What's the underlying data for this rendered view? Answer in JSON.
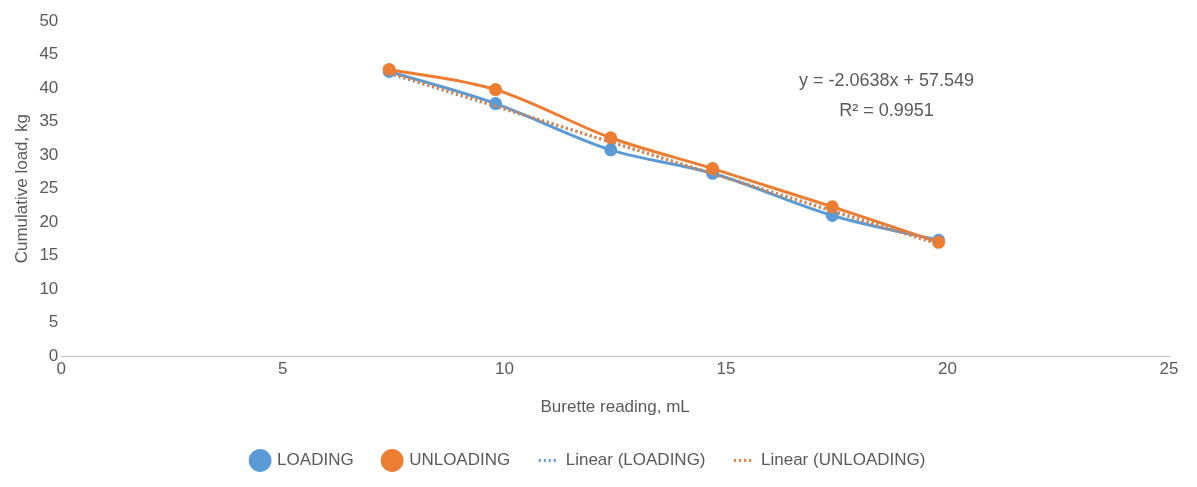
{
  "chart_data": {
    "type": "line",
    "xlabel": "Burette reading, mL",
    "ylabel": "Cumulative load, kg",
    "xlim": [
      0,
      25
    ],
    "xticks": [
      0,
      5,
      10,
      15,
      20,
      25
    ],
    "ylim": [
      0,
      50
    ],
    "yticks": [
      0,
      5,
      10,
      15,
      20,
      25,
      30,
      35,
      40,
      45,
      50
    ],
    "grid": false,
    "legend": "bottom",
    "marker": "circle",
    "annotations": [
      "y = -2.0638x + 57.549",
      "R² = 0.9951"
    ],
    "series": [
      {
        "name": "LOADING",
        "color": "#5b9bd5",
        "x": [
          7.4,
          9.8,
          12.4,
          14.7,
          17.4,
          19.8
        ],
        "values": [
          42.5,
          37.7,
          30.8,
          27.3,
          21.0,
          17.3
        ]
      },
      {
        "name": "UNLOADING",
        "color": "#ed7d31",
        "x": [
          7.4,
          9.8,
          12.4,
          14.7,
          17.4,
          19.8
        ],
        "values": [
          42.8,
          39.8,
          32.6,
          28.0,
          22.3,
          17.0
        ]
      },
      {
        "name": "Linear (LOADING)",
        "color": "#5b9bd5",
        "x": [
          7.4,
          19.8
        ],
        "values": [
          42.2,
          16.8
        ],
        "marker": "none",
        "line_style": "dotted"
      },
      {
        "name": "Linear (UNLOADING)",
        "color": "#ed7d31",
        "x": [
          7.4,
          19.8
        ],
        "values": [
          42.3,
          16.7
        ],
        "marker": "none",
        "line_style": "dotted"
      }
    ]
  }
}
